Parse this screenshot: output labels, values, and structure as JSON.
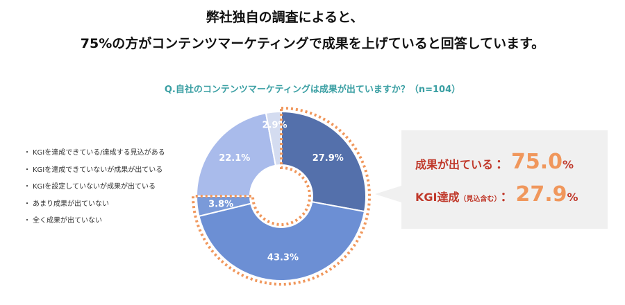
{
  "header": {
    "line1": "弊社独自の調査によると、",
    "line2": "75%の方がコンテンツマーケティングで成果を上げていると回答しています。"
  },
  "chart_data": {
    "type": "pie",
    "title": "Q.自社のコンテンツマーケティングは成果が出ていますか？（n=104）",
    "categories": [
      "KGIを達成できている/達成する見込がある",
      "KGIを達成できていないが成果が出ている",
      "KGIを設定していないが成果が出ている",
      "あまり成果が出ていない",
      "全く成果が出ていない"
    ],
    "values": [
      27.9,
      43.3,
      3.8,
      22.1,
      2.9
    ],
    "data_labels": [
      "27.9%",
      "43.3%",
      "3.8%",
      "22.1%",
      "2.9%"
    ],
    "colors": [
      "#5470ab",
      "#6c8fd4",
      "#7a9ad9",
      "#a9bbeb",
      "#d4dcf0"
    ],
    "donut": true,
    "legend_position": "left"
  },
  "callout": {
    "row1_label": "成果が出ている",
    "row1_colon": "：",
    "row1_value": "75.0",
    "row1_unit": "%",
    "row2_label": "KGI達成",
    "row2_note": "（見込含む）",
    "row2_colon": "：",
    "row2_value": "27.9",
    "row2_unit": "%"
  },
  "legend_bullet": "・"
}
